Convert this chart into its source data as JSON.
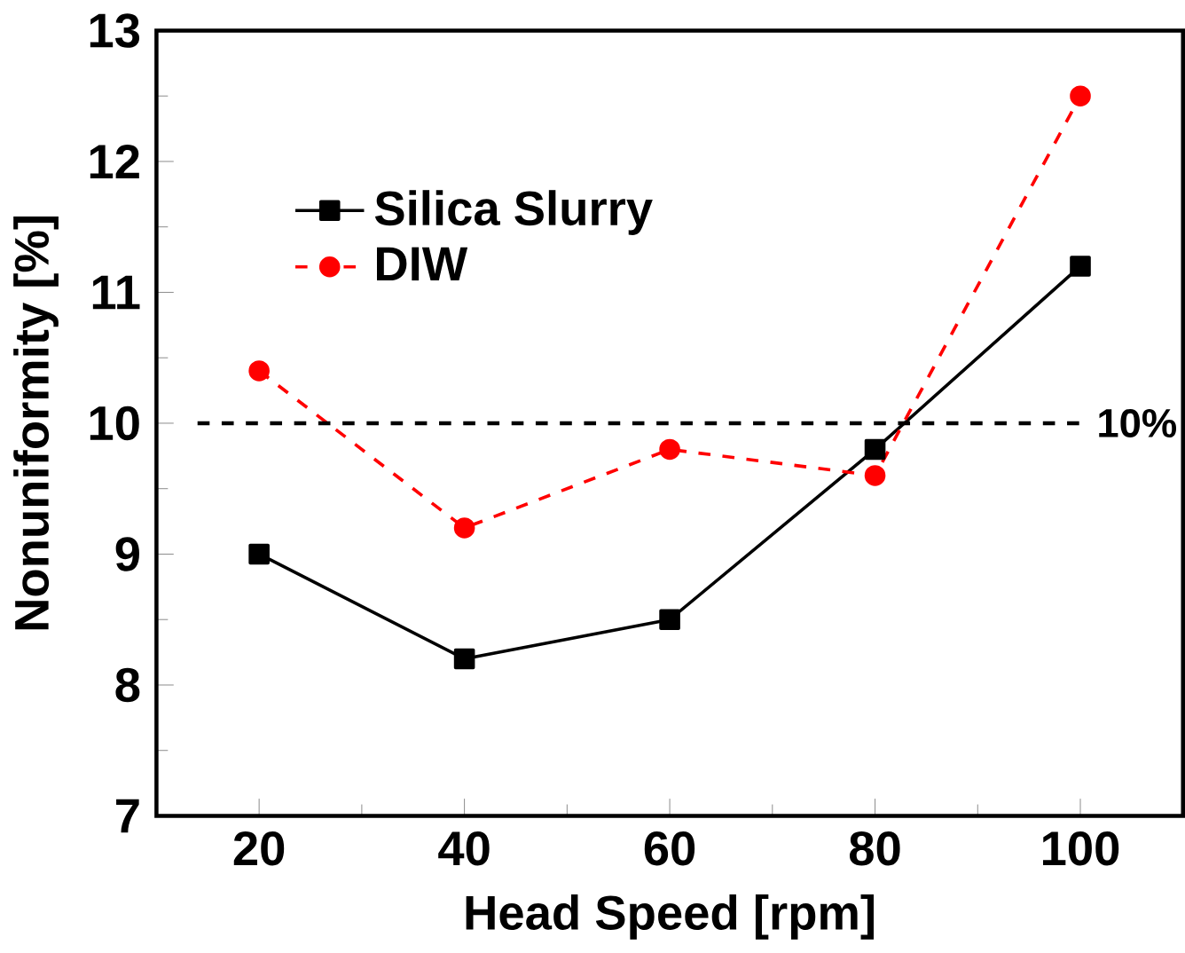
{
  "chart_data": {
    "type": "line",
    "xlabel": "Head Speed [rpm]",
    "ylabel": "Nonuniformity [%]",
    "x": [
      20,
      40,
      60,
      80,
      100
    ],
    "series": [
      {
        "name": "Silica Slurry",
        "color": "#000000",
        "values": [
          9.0,
          8.2,
          8.5,
          9.8,
          11.2
        ],
        "marker": "square",
        "line_style": "solid"
      },
      {
        "name": "DIW",
        "color": "#ff0000",
        "values": [
          10.4,
          9.2,
          9.8,
          9.6,
          12.5
        ],
        "marker": "circle",
        "line_style": "dashed"
      }
    ],
    "xlim": [
      10,
      110
    ],
    "xticks": [
      20,
      40,
      60,
      80,
      100
    ],
    "ylim": [
      7,
      13
    ],
    "yticks": [
      7,
      8,
      9,
      10,
      11,
      12,
      13
    ],
    "ref_lines": [
      {
        "axis": "y",
        "value": 10,
        "label": "10%",
        "color": "#000000",
        "line_style": "dashed"
      }
    ],
    "legend": "top left",
    "grid": false
  }
}
